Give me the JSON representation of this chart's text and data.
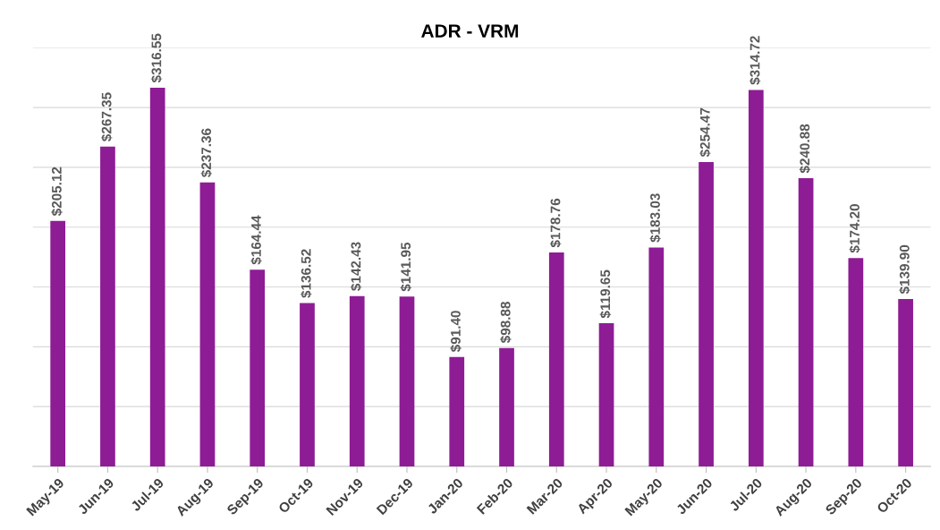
{
  "chart_data": {
    "type": "bar",
    "title": "ADR - VRM",
    "categories": [
      "May-19",
      "Jun-19",
      "Jul-19",
      "Aug-19",
      "Sep-19",
      "Oct-19",
      "Nov-19",
      "Dec-19",
      "Jan-20",
      "Feb-20",
      "Mar-20",
      "Apr-20",
      "May-20",
      "Jun-20",
      "Jul-20",
      "Aug-20",
      "Sep-20",
      "Oct-20"
    ],
    "values": [
      205.12,
      267.35,
      316.55,
      237.36,
      164.44,
      136.52,
      142.43,
      141.95,
      91.4,
      98.88,
      178.76,
      119.65,
      183.03,
      254.47,
      314.72,
      240.88,
      174.2,
      139.9
    ],
    "value_labels": [
      "$205.12",
      "$267.35",
      "$316.55",
      "$237.36",
      "$164.44",
      "$136.52",
      "$142.43",
      "$141.95",
      "$91.40",
      "$98.88",
      "$178.76",
      "$119.65",
      "$183.03",
      "$254.47",
      "$314.72",
      "$240.88",
      "$174.20",
      "$139.90"
    ],
    "color": "#8e1c95",
    "ylim": [
      0,
      350
    ],
    "yticks": [
      {
        "value": 0,
        "label": null
      },
      {
        "value": 50,
        "label": null
      },
      {
        "value": 100,
        "label": null
      },
      {
        "value": 150,
        "label": null
      },
      {
        "value": 200,
        "label": null
      },
      {
        "value": 250,
        "label": null
      },
      {
        "value": 300,
        "label": null
      },
      {
        "value": 350,
        "label": null
      }
    ],
    "tick_labels": "x",
    "grid": "y",
    "legend": false
  }
}
